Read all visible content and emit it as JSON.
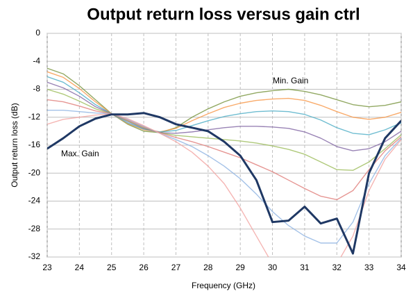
{
  "chart_data": {
    "type": "line",
    "title": "Output return loss versus gain ctrl",
    "xlabel": "Frequency (GHz)",
    "ylabel": "Output return loss (dB)",
    "annotations": [
      "Min. Gain",
      "Max. Gain"
    ],
    "x": [
      23,
      23.5,
      24,
      24.5,
      25,
      25.5,
      26,
      26.5,
      27,
      27.5,
      28,
      28.5,
      29,
      29.5,
      30,
      30.5,
      31,
      31.5,
      32,
      32.5,
      33,
      33.5,
      34
    ],
    "xlim": [
      23,
      34
    ],
    "xticks": [
      23,
      24,
      25,
      26,
      27,
      28,
      29,
      30,
      31,
      32,
      33,
      34
    ],
    "ylim": [
      -32,
      0
    ],
    "yticks": [
      -32,
      -28,
      -24,
      -20,
      -16,
      -12,
      -8,
      -4,
      0
    ],
    "grid": true,
    "series": [
      {
        "color": "#77933c",
        "values": [
          -5,
          -5.8,
          -7.5,
          -9.5,
          -11.5,
          -13,
          -14,
          -14.2,
          -13.5,
          -12,
          -10.8,
          -9.8,
          -9,
          -8.5,
          -8.2,
          -8,
          -8.3,
          -8.8,
          -9.5,
          -10.2,
          -10.5,
          -10.3,
          -9.8
        ]
      },
      {
        "color": "#f79646",
        "values": [
          -5.5,
          -6.3,
          -7.9,
          -9.8,
          -11.5,
          -12.9,
          -13.8,
          -14.1,
          -13.6,
          -12.5,
          -11.5,
          -10.6,
          -10,
          -9.6,
          -9.4,
          -9.3,
          -9.6,
          -10.3,
          -11.2,
          -12,
          -12.3,
          -12,
          -11.3
        ]
      },
      {
        "color": "#4bacc6",
        "values": [
          -6.2,
          -7,
          -8.5,
          -10.2,
          -11.5,
          -12.8,
          -13.7,
          -14.1,
          -13.9,
          -13.2,
          -12.5,
          -11.9,
          -11.5,
          -11.2,
          -11.1,
          -11.2,
          -11.6,
          -12.4,
          -13.5,
          -14.3,
          -14.5,
          -13.8,
          -12.8
        ]
      },
      {
        "color": "#8064a2",
        "values": [
          -7,
          -7.8,
          -9,
          -10.5,
          -11.5,
          -12.6,
          -13.6,
          -14.2,
          -14.3,
          -14.1,
          -13.8,
          -13.5,
          -13.3,
          -13.3,
          -13.4,
          -13.6,
          -14.1,
          -15,
          -16.2,
          -16.8,
          -16.5,
          -15.5,
          -14
        ]
      },
      {
        "color": "#9bbb59",
        "values": [
          -8,
          -8.7,
          -9.7,
          -10.8,
          -11.5,
          -12.5,
          -13.5,
          -14.2,
          -14.6,
          -14.8,
          -15,
          -15.2,
          -15.4,
          -15.7,
          -16.1,
          -16.6,
          -17.3,
          -18.4,
          -19.5,
          -19.6,
          -18.4,
          -16.5,
          -14.5
        ]
      },
      {
        "color": "#e07c78",
        "values": [
          -9.5,
          -9.8,
          -10.4,
          -11.1,
          -11.5,
          -12.4,
          -13.4,
          -14.2,
          -14.9,
          -15.5,
          -16.2,
          -17,
          -17.8,
          -18.8,
          -19.8,
          -21,
          -22.2,
          -23.3,
          -23.8,
          -22.5,
          -19.5,
          -16.8,
          -14.8
        ]
      },
      {
        "color": "#8db3e2",
        "values": [
          -11,
          -11,
          -11.2,
          -11.4,
          -11.5,
          -12.3,
          -13.3,
          -14.3,
          -15.2,
          -16.2,
          -17.5,
          -19,
          -20.8,
          -23,
          -25.5,
          -27.5,
          -29,
          -30,
          -30,
          -27,
          -21.5,
          -17.5,
          -15
        ]
      },
      {
        "color": "#f2a2a0",
        "values": [
          -13,
          -12.3,
          -12,
          -11.7,
          -11.5,
          -12.2,
          -13.2,
          -14.3,
          -15.5,
          -17,
          -19,
          -21.5,
          -25,
          -29,
          -33,
          -34,
          -34,
          -34,
          -33,
          -29,
          -22.5,
          -18,
          -15.2
        ]
      },
      {
        "color": "#1f3864",
        "values": [
          -16.5,
          -15,
          -13.3,
          -12.2,
          -11.6,
          -11.6,
          -11.4,
          -12,
          -13,
          -13.5,
          -14,
          -15.5,
          -17.5,
          -21,
          -27,
          -26.8,
          -24.8,
          -27.2,
          -26.5,
          -31.5,
          -20,
          -15,
          -12.5
        ]
      }
    ]
  }
}
